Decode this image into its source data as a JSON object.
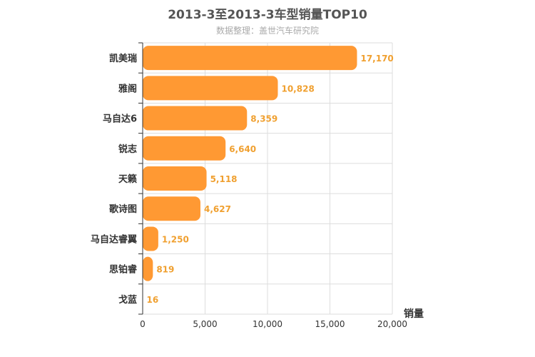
{
  "chart_data": {
    "type": "bar",
    "orientation": "horizontal",
    "title": "2013-3至2013-3车型销量TOP10",
    "subtitle": "数据整理：盖世汽车研究院",
    "categories": [
      "凯美瑞",
      "雅阁",
      "马自达6",
      "锐志",
      "天籁",
      "歌诗图",
      "马自达睿翼",
      "思铂睿",
      "戈蓝"
    ],
    "values": [
      17170,
      10828,
      8359,
      6640,
      5118,
      4627,
      1250,
      819,
      16
    ],
    "value_labels": [
      "17,170",
      "10,828",
      "8,359",
      "6,640",
      "5,118",
      "4,627",
      "1,250",
      "819",
      "16"
    ],
    "xlabel": "销量",
    "xlim": [
      0,
      20000
    ],
    "xticks": [
      0,
      5000,
      10000,
      15000,
      20000
    ],
    "xtick_labels": [
      "0",
      "5,000",
      "10,000",
      "15,000",
      "20,000"
    ],
    "grid": true,
    "colors": {
      "bar": "#ff9933",
      "value_label": "#f0a030",
      "grid": "#dddddd",
      "axis": "#333333"
    }
  }
}
